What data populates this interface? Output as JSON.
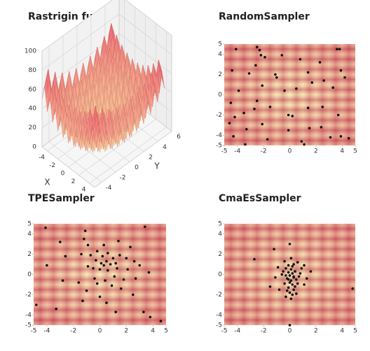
{
  "chart_data": [
    {
      "type": "surface3d",
      "title": "Rastrigin function",
      "x_label": "X",
      "y_label": "Y",
      "xlim": [
        -5,
        5
      ],
      "ylim": [
        -5,
        6
      ],
      "zlim": [
        0,
        100
      ],
      "xticks": [
        -4,
        -2,
        0,
        2,
        4
      ],
      "yticks": [
        -4,
        -2,
        0,
        2,
        4,
        6
      ],
      "zticks": [
        0,
        20,
        40,
        60,
        80,
        100
      ]
    },
    {
      "type": "scatter",
      "title": "RandomSampler",
      "color": "#111111",
      "xlim": [
        -5,
        5
      ],
      "ylim": [
        -5,
        5
      ],
      "xticks": [
        -5,
        -4,
        -2,
        0,
        2,
        4,
        5
      ],
      "yticks": [
        -5,
        -4,
        -2,
        0,
        2,
        4,
        5
      ],
      "x": [
        -2.5,
        -2.3,
        -2.2,
        -4.1,
        -1.9,
        3.6,
        3.8,
        -0.6,
        0.8,
        2.3,
        3.9,
        -2.6,
        -4.4,
        -3.1,
        -1.1,
        -1.0,
        1.4,
        2.6,
        4.2,
        1.7,
        -3.9,
        -2.1,
        -0.4,
        0.5,
        3.3,
        -4.5,
        -2.5,
        -2.7,
        -3.5,
        -4.2,
        -1.5,
        -0.1,
        0.2,
        1.4,
        2.5,
        3.7,
        -4.6,
        -3.3,
        -2.1,
        -0.1,
        1.5,
        2.4,
        -4.3,
        -1.7,
        0.9,
        3.1,
        3.9,
        4.5,
        -3.4,
        1.1
      ],
      "y": [
        4.7,
        4.4,
        3.9,
        4.5,
        3.7,
        4.5,
        4.5,
        3.9,
        3.5,
        3.2,
        2.4,
        2.9,
        2.4,
        2.1,
        2.0,
        1.7,
        2.2,
        1.4,
        1.7,
        1.2,
        0.4,
        0.9,
        0.4,
        0.6,
        0.7,
        -0.8,
        -0.6,
        -1.4,
        -1.8,
        -2.2,
        -1.2,
        -2.0,
        -2.1,
        -1.3,
        -1.2,
        -2.0,
        -2.8,
        -3.4,
        -2.9,
        -3.5,
        -3.3,
        -3.2,
        -4.1,
        -4.4,
        -4.6,
        -4.2,
        -4.1,
        -4.3,
        -4.9,
        -4.9
      ]
    },
    {
      "type": "scatter",
      "title": "TPESampler",
      "color": "#111111",
      "xlim": [
        -5,
        5
      ],
      "ylim": [
        -5,
        5
      ],
      "xticks": [
        -5,
        -4,
        -2,
        0,
        2,
        4,
        5
      ],
      "yticks": [
        -5,
        -4,
        -2,
        0,
        2,
        4,
        5
      ],
      "x": [
        -4.1,
        -1.1,
        3.4,
        -3.0,
        -1.2,
        -0.9,
        0.3,
        1.4,
        2.3,
        -2.6,
        -1.4,
        -0.7,
        -0.2,
        0.2,
        0.6,
        1.0,
        1.5,
        2.0,
        2.6,
        -0.3,
        0.1,
        0.3,
        0.5,
        0.8,
        1.2,
        -0.9,
        -0.5,
        0.0,
        0.6,
        1.3,
        2.1,
        3.0,
        -4.0,
        -2.8,
        -1.6,
        -0.4,
        0.4,
        1.1,
        1.8,
        2.7,
        3.7,
        -0.2,
        0.9,
        -1.0,
        1.6,
        2.5,
        0.0,
        -1.3,
        -3.3,
        -4.8,
        0.5,
        3.3,
        3.8,
        4.6,
        1.2
      ],
      "y": [
        4.6,
        4.3,
        4.7,
        3.2,
        3.5,
        2.9,
        2.9,
        3.3,
        2.7,
        1.8,
        2.0,
        1.9,
        2.3,
        1.8,
        2.1,
        1.6,
        1.9,
        1.6,
        1.3,
        1.4,
        1.1,
        0.9,
        1.3,
        1.0,
        1.1,
        0.8,
        0.6,
        0.5,
        0.4,
        0.6,
        0.5,
        0.9,
        0.9,
        -0.6,
        -0.8,
        -0.4,
        -0.6,
        -0.2,
        -0.5,
        -0.4,
        0.2,
        -0.9,
        -1.1,
        -1.6,
        -1.4,
        -2.0,
        -2.2,
        -2.6,
        -3.4,
        -3.0,
        -2.8,
        -3.7,
        -4.2,
        -4.6,
        -3.7
      ]
    },
    {
      "type": "scatter",
      "title": "CmaEsSampler",
      "color": "#111111",
      "xlim": [
        -5,
        5
      ],
      "ylim": [
        -5,
        5
      ],
      "xticks": [
        -5,
        -4,
        -2,
        0,
        2,
        4,
        5
      ],
      "yticks": [
        -5,
        -4,
        -2,
        0,
        2,
        4,
        5
      ],
      "x": [
        -2.7,
        0.0,
        -1.2,
        -0.4,
        0.1,
        0.6,
        1.1,
        -0.9,
        -0.3,
        0.2,
        0.4,
        -0.1,
        0.0,
        0.3,
        -0.2,
        0.1,
        0.5,
        -0.4,
        0.2,
        0.6,
        -0.1,
        0.3,
        0.0,
        0.4,
        -0.6,
        0.8,
        1.3,
        -1.1,
        0.1,
        -0.3,
        0.2,
        0.0,
        -0.2,
        0.5,
        0.1,
        1.1,
        -0.8,
        0.9,
        0.3,
        -0.5,
        0.7,
        -0.1,
        0.2,
        -0.3,
        1.6,
        -1.5,
        0.0,
        4.8,
        0.3,
        -0.1
      ],
      "y": [
        1.5,
        3.0,
        2.5,
        1.3,
        1.6,
        1.2,
        0.9,
        0.7,
        0.6,
        0.8,
        0.3,
        0.2,
        -0.1,
        -0.2,
        -0.4,
        -0.6,
        -0.5,
        -0.9,
        -1.0,
        -0.9,
        -1.3,
        -1.5,
        -1.8,
        -1.2,
        0.0,
        0.1,
        -0.4,
        -0.3,
        0.5,
        -0.1,
        0.1,
        -0.8,
        -1.6,
        -1.9,
        -2.4,
        -1.0,
        -1.5,
        0.6,
        1.0,
        0.3,
        -0.2,
        0.9,
        -2.0,
        -2.2,
        0.3,
        -1.2,
        -5.0,
        -1.4,
        -0.3,
        -0.5
      ]
    }
  ]
}
